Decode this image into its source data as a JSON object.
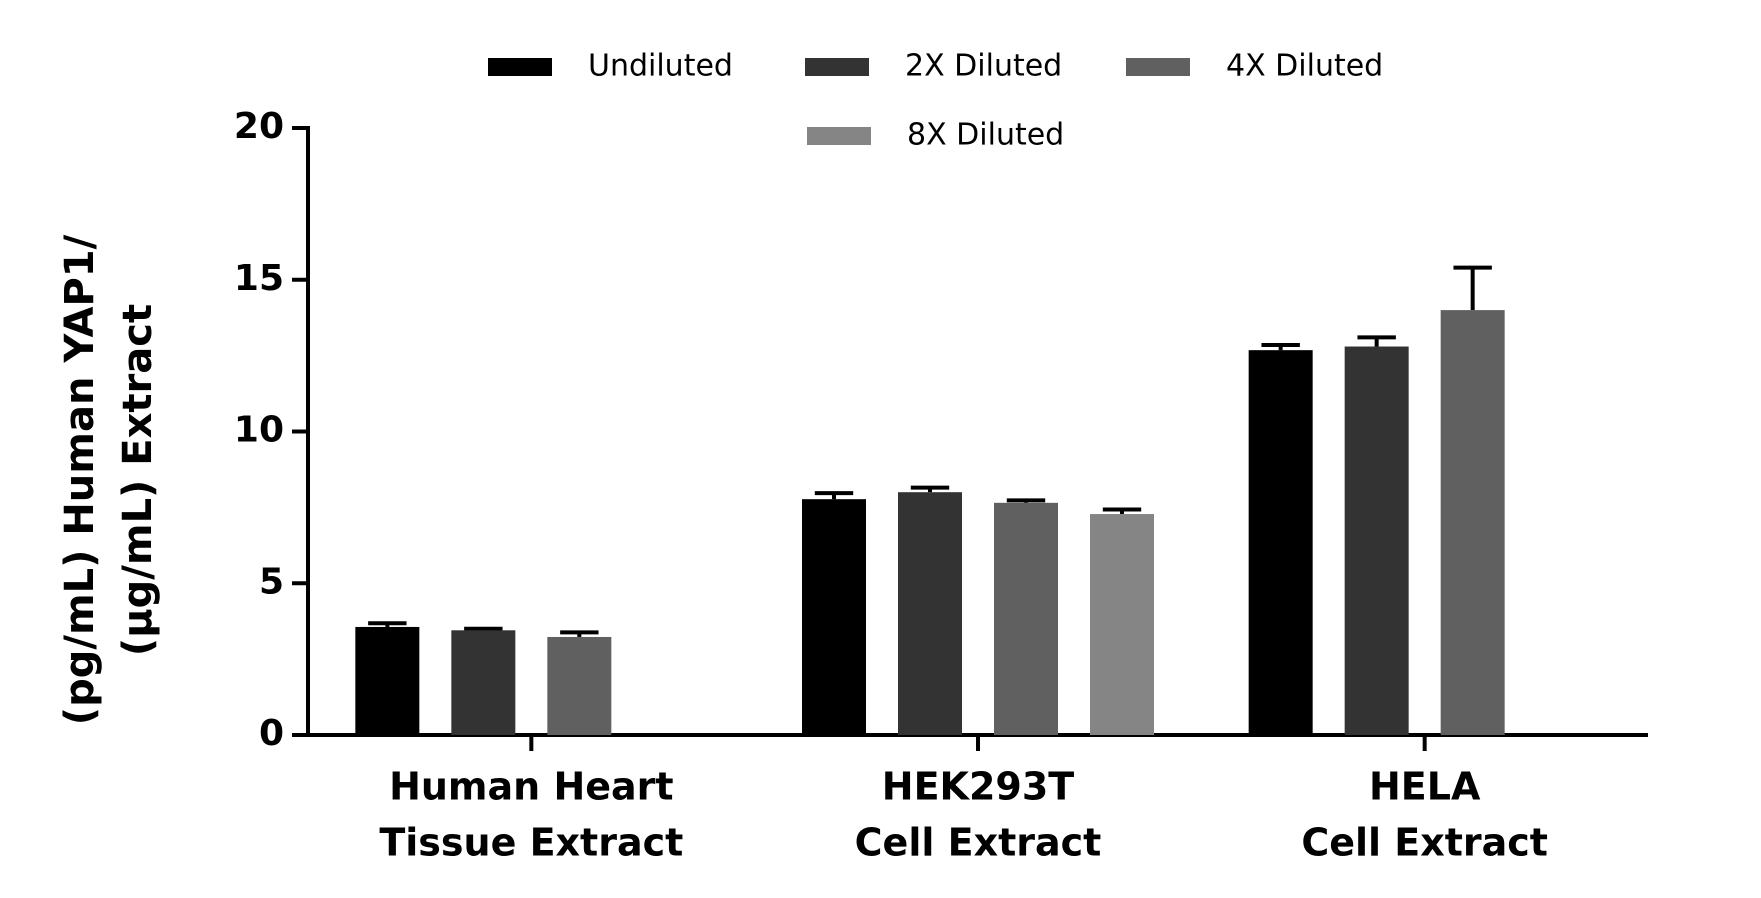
{
  "chart_data": {
    "type": "bar",
    "ylabel": [
      "(pg/mL) Human YAP1/",
      "(µg/mL) Extract"
    ],
    "categories": [
      [
        "Human Heart",
        "Tissue Extract"
      ],
      [
        "HEK293T",
        "Cell Extract"
      ],
      [
        "HELA",
        "Cell Extract"
      ]
    ],
    "series": [
      {
        "name": "Undiluted",
        "color": "#000000",
        "values": [
          3.56,
          7.77,
          12.68
        ],
        "errors": [
          0.12,
          0.2,
          0.17
        ]
      },
      {
        "name": "2X Diluted",
        "color": "#333333",
        "values": [
          3.45,
          8.0,
          12.8
        ],
        "errors": [
          0.05,
          0.15,
          0.3
        ]
      },
      {
        "name": "4X Diluted",
        "color": "#606060",
        "values": [
          3.23,
          7.65,
          14.0
        ],
        "errors": [
          0.15,
          0.08,
          1.4
        ]
      },
      {
        "name": "8X Diluted",
        "color": "#858585",
        "values": [
          null,
          7.28,
          null
        ],
        "errors": [
          null,
          0.15,
          null
        ]
      }
    ],
    "ylim": [
      0,
      20
    ],
    "yticks": [
      0,
      5,
      10,
      15,
      20
    ],
    "grid": false
  }
}
